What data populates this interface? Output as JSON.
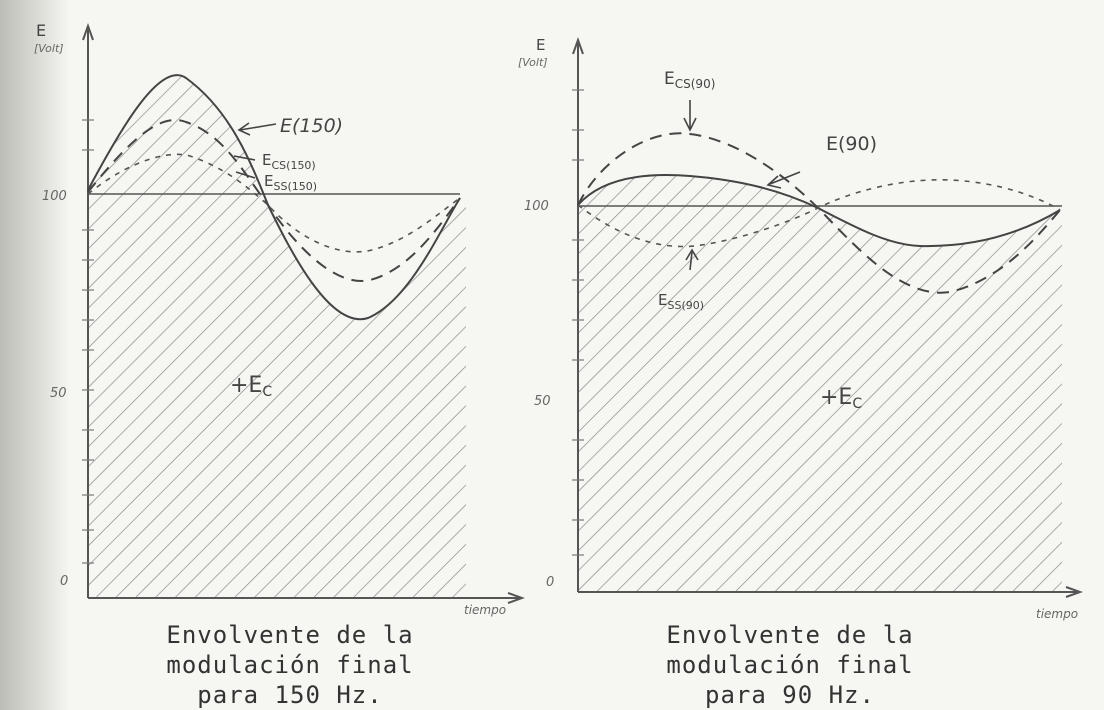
{
  "left_panel": {
    "y_axis_label": "E",
    "y_axis_unit": "[Volt]",
    "x_axis_label": "tiempo",
    "tick_labels": [
      "100",
      "50",
      "0"
    ],
    "curve_labels": {
      "total": "E(150)",
      "cs": "E",
      "cs_sub": "CS(150)",
      "ss": "E",
      "ss_sub": "SS(150)"
    },
    "area_label": "+E",
    "area_label_sub": "C",
    "caption": [
      "Envolvente de la",
      "modulación final",
      "para 150 Hz."
    ]
  },
  "right_panel": {
    "y_axis_label": "E",
    "y_axis_unit": "[Volt]",
    "x_axis_label": "tiempo",
    "tick_labels": [
      "100",
      "50",
      "0"
    ],
    "curve_labels": {
      "total": "E(90)",
      "cs": "E",
      "cs_sub": "CS(90)",
      "ss": "E",
      "ss_sub": "SS(90)"
    },
    "area_label": "+E",
    "area_label_sub": "C",
    "caption": [
      "Envolvente de la",
      "modulación final",
      "para 90 Hz."
    ]
  },
  "colors": {
    "ink": "#444444",
    "hatch": "#8a8a8a",
    "background": "#f6f6f3"
  }
}
